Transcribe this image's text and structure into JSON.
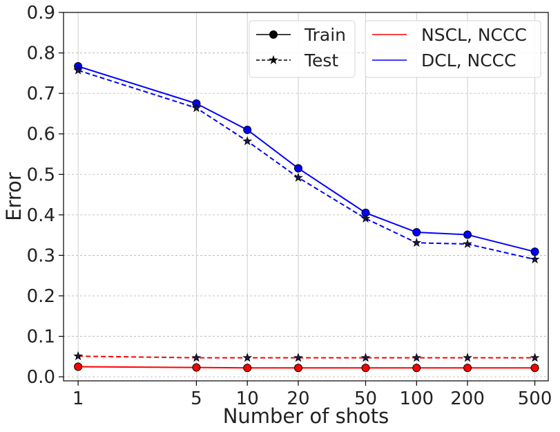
{
  "chart_data": {
    "type": "line",
    "xscale": "log",
    "x": [
      1,
      5,
      10,
      20,
      50,
      100,
      200,
      500
    ],
    "xticklabels": [
      "1",
      "5",
      "10",
      "20",
      "50",
      "100",
      "200",
      "500"
    ],
    "xlabel": "Number of shots",
    "ylabel": "Error",
    "ylim": [
      -0.01,
      0.9
    ],
    "yticks": [
      0.0,
      0.1,
      0.2,
      0.3,
      0.4,
      0.5,
      0.6,
      0.7,
      0.8,
      0.9
    ],
    "yticklabels": [
      "0.0",
      "0.1",
      "0.2",
      "0.3",
      "0.4",
      "0.5",
      "0.6",
      "0.7",
      "0.8",
      "0.9"
    ],
    "grid": true,
    "series": [
      {
        "model": "NSCL, NCCC",
        "split": "Train",
        "color": "#ff0000",
        "style": "solid",
        "marker": "circle",
        "values": [
          0.025,
          0.023,
          0.022,
          0.022,
          0.022,
          0.022,
          0.022,
          0.022
        ]
      },
      {
        "model": "NSCL, NCCC",
        "split": "Test",
        "color": "#ff0000",
        "style": "dashed",
        "marker": "star",
        "values": [
          0.051,
          0.047,
          0.047,
          0.047,
          0.047,
          0.047,
          0.047,
          0.047
        ]
      },
      {
        "model": "DCL, NCCC",
        "split": "Train",
        "color": "#0000ff",
        "style": "solid",
        "marker": "circle",
        "values": [
          0.767,
          0.675,
          0.61,
          0.515,
          0.405,
          0.357,
          0.351,
          0.309
        ]
      },
      {
        "model": "DCL, NCCC",
        "split": "Test",
        "color": "#0000ff",
        "style": "dashed",
        "marker": "star",
        "values": [
          0.757,
          0.664,
          0.582,
          0.492,
          0.391,
          0.331,
          0.328,
          0.29
        ]
      }
    ],
    "legend_style": {
      "placement": "top-right",
      "items": [
        {
          "label": "Train",
          "style": "solid",
          "marker": "circle",
          "color": "#000000"
        },
        {
          "label": "Test",
          "style": "dashed",
          "marker": "star",
          "color": "#000000"
        }
      ]
    },
    "legend_model": {
      "placement": "top-right",
      "items": [
        {
          "label": "NSCL, NCCC",
          "color": "#ff0000"
        },
        {
          "label": "DCL, NCCC",
          "color": "#0000ff"
        }
      ]
    }
  }
}
